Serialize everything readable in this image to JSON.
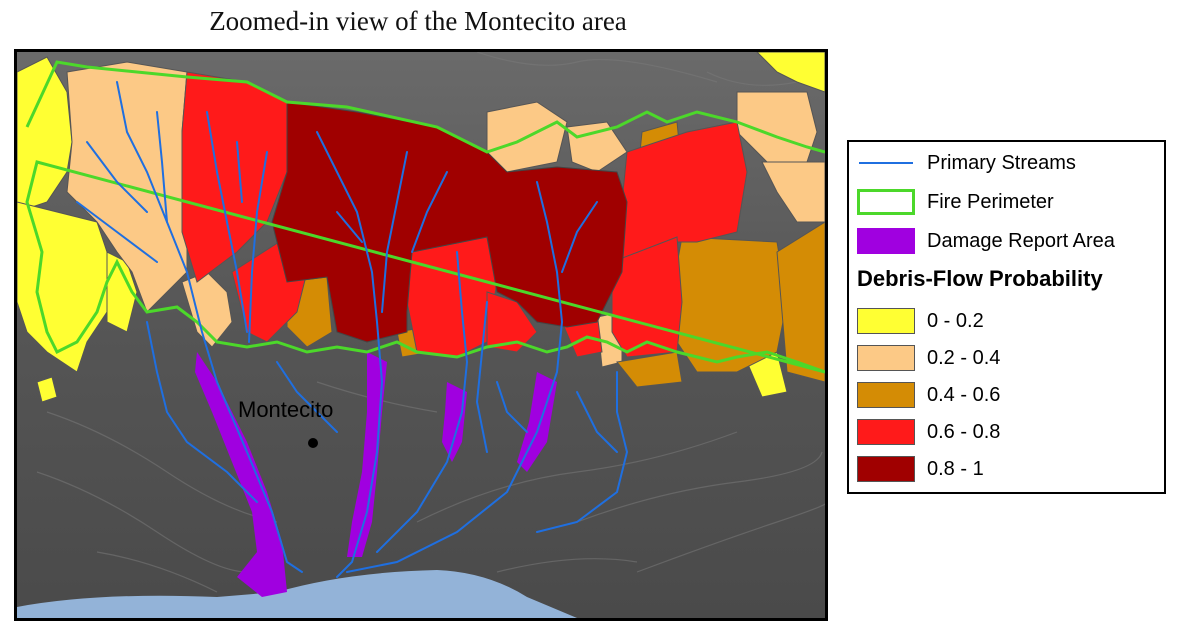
{
  "title": "Zoomed-in view of the Montecito area",
  "map": {
    "place_label": "Montecito",
    "colors": {
      "terrain": "#5a5a5a",
      "ocean": "#93b3d8",
      "stream": "#1f6fe0",
      "fire_perimeter": "#4cd82a",
      "damage": "#a000e0"
    }
  },
  "legend": {
    "items": [
      {
        "label": "Primary Streams",
        "symbol": "line",
        "color": "#1f6fe0"
      },
      {
        "label": "Fire Perimeter",
        "symbol": "outline",
        "color": "#4cd82a"
      },
      {
        "label": "Damage Report Area",
        "symbol": "fill",
        "color": "#a000e0"
      }
    ],
    "heading": "Debris-Flow Probability",
    "classes": [
      {
        "label": "0 - 0.2",
        "color": "#ffff33"
      },
      {
        "label": "0.2 - 0.4",
        "color": "#fcc986"
      },
      {
        "label": "0.4 - 0.6",
        "color": "#d48c05"
      },
      {
        "label": "0.6 - 0.8",
        "color": "#ff1a1a"
      },
      {
        "label": "0.8 - 1",
        "color": "#a00000"
      }
    ]
  }
}
